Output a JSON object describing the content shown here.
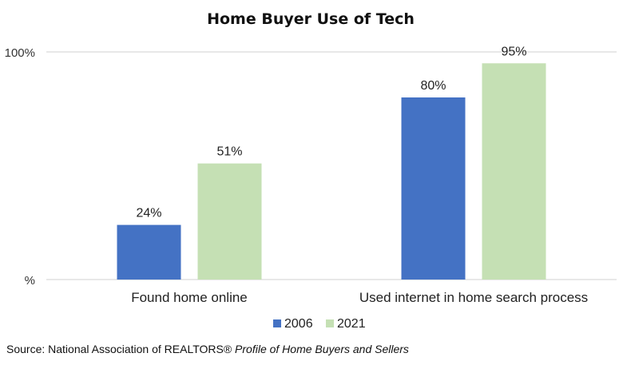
{
  "chart_data": {
    "type": "bar",
    "title": "Home Buyer Use of Tech",
    "categories": [
      "Found home online",
      "Used internet in home search process"
    ],
    "series": [
      {
        "name": "2006",
        "values": [
          24,
          80
        ],
        "color": "#4472C4",
        "labels": [
          "24%",
          "80%"
        ]
      },
      {
        "name": "2021",
        "values": [
          51,
          95
        ],
        "color": "#C5E0B4",
        "labels": [
          "51%",
          "95%"
        ]
      }
    ],
    "ylim": [
      0,
      100
    ],
    "yticks": [
      {
        "value": 100,
        "label": "100%"
      },
      {
        "value": 0,
        "label": "%"
      }
    ],
    "grid": false,
    "legend_position": "bottom"
  },
  "source": {
    "prefix": "Source: National Association of REALTORS® ",
    "publication": "Profile of Home Buyers and Sellers"
  }
}
